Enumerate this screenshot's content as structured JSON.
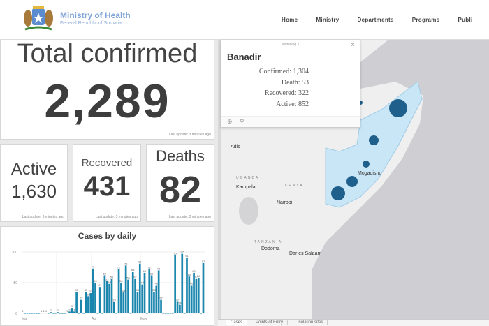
{
  "header": {
    "ministry_name": "Ministry of Health",
    "ministry_sub": "Federal Republic of Somalia",
    "nav": [
      "Home",
      "Ministry",
      "Departments",
      "Programs",
      "Publi"
    ]
  },
  "stats": {
    "total": {
      "title": "Total confirmed",
      "value": "2,289",
      "last_update": "Last update: 3 minutes ago"
    },
    "active": {
      "title": "Active",
      "value": "1,630",
      "last_update": "Last update: 3 minutes ago"
    },
    "recovered": {
      "title": "Recovered",
      "value": "431",
      "last_update": "Last update: 3 minutes ago"
    },
    "deaths": {
      "title": "Deaths",
      "value": "82",
      "last_update": "Last update: 3 minutes ago"
    }
  },
  "popup": {
    "header": "Widening 1",
    "region": "Banadir",
    "confirmed": "Confirmed: 1,304",
    "deaths": "Death: 53",
    "recovered": "Recovered: 322",
    "active": "Active: 852",
    "close_icon": "×"
  },
  "map": {
    "labels": {
      "addis": "Adis",
      "kampala": "Kampala",
      "nairobi": "Nairobi",
      "mogadishu": "Mogadishu",
      "dodoma": "Dodoma",
      "dar": "Dar es Salaam",
      "kenya": "KENYA",
      "tanzania": "TANZANIA",
      "uganda": "UGANDA"
    },
    "tabs": [
      "Cases",
      "Points of Entry",
      "Isolation sites"
    ],
    "colors": {
      "somalia_fill": "#c9e6f7",
      "bubble": "#1f5f8b",
      "ocean": "#cfcfd3",
      "land": "#efefef"
    }
  },
  "chart_data": {
    "type": "bar",
    "title": "Cases by daily",
    "xlabel": "",
    "ylabel": "",
    "ylim": [
      0,
      100
    ],
    "yticks": [
      0,
      50,
      100
    ],
    "xtick_labels": [
      "Mar",
      "Apr",
      "May"
    ],
    "grid": true,
    "color": "#1a86ad",
    "values": [
      1,
      0,
      0,
      0,
      0,
      0,
      0,
      0,
      1,
      1,
      1,
      0,
      2,
      0,
      0,
      2,
      0,
      0,
      0,
      1,
      3,
      9,
      3,
      35,
      0,
      22,
      0,
      35,
      28,
      33,
      73,
      50,
      0,
      43,
      0,
      62,
      53,
      48,
      56,
      19,
      0,
      72,
      50,
      34,
      78,
      55,
      0,
      68,
      57,
      35,
      81,
      47,
      66,
      0,
      72,
      62,
      35,
      46,
      70,
      22,
      0,
      0,
      0,
      0,
      0,
      95,
      20,
      14,
      97,
      0,
      91,
      60,
      46,
      66,
      57,
      58,
      0,
      82
    ]
  }
}
